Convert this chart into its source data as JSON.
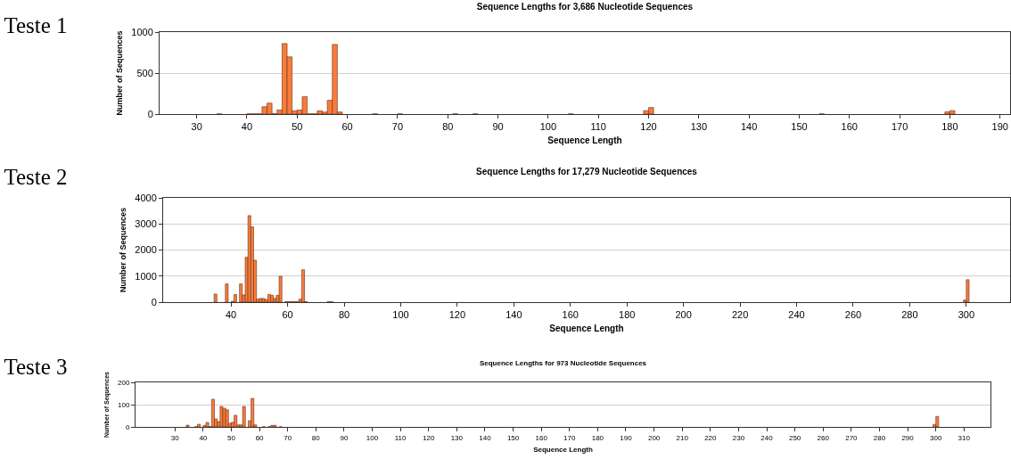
{
  "chart_data": [
    {
      "type": "bar",
      "title": "Sequence Lengths for 3,686 Nucleotide Sequences",
      "xlabel": "Sequence Length",
      "ylabel": "Number of Sequences",
      "annotations": [
        "Teste 1"
      ],
      "x": [
        34.5,
        40.5,
        41.5,
        42.5,
        43.5,
        44.5,
        45.5,
        46.5,
        47.5,
        48.5,
        49.5,
        50.5,
        51.5,
        52.5,
        53.5,
        54.5,
        55.5,
        56.5,
        57.5,
        58.5,
        65.5,
        70.5,
        81.5,
        85.5,
        104.5,
        119.5,
        120.5,
        154.5,
        179.5,
        180.5
      ],
      "values": [
        3,
        3,
        3,
        3,
        90,
        133,
        5,
        50,
        860,
        698,
        40,
        50,
        212,
        3,
        3,
        40,
        25,
        169,
        849,
        25,
        3,
        3,
        3,
        3,
        3,
        42,
        80,
        3,
        27,
        42
      ],
      "color": "#f87c3c",
      "xlim": [
        22.6,
        192
      ],
      "xticks": [
        30,
        40,
        50,
        60,
        70,
        80,
        90,
        100,
        110,
        120,
        130,
        140,
        150,
        160,
        170,
        180,
        190
      ],
      "ylim": [
        0,
        1000
      ],
      "yticks": [
        0,
        500,
        1000
      ],
      "grid": "y"
    },
    {
      "type": "bar",
      "title": "Sequence Lengths for 17,279 Nucleotide Sequences",
      "xlabel": "Sequence Length",
      "ylabel": "Number of Sequences",
      "annotations": [
        "Teste 2"
      ],
      "x": [
        34.5,
        38.5,
        40.5,
        41.5,
        43.5,
        44.5,
        45.5,
        46.5,
        47.5,
        48.5,
        49.5,
        50.5,
        51.5,
        52.5,
        53.5,
        54.5,
        55.5,
        56.5,
        57.5,
        59.5,
        60.5,
        61.5,
        62.5,
        63.5,
        64.5,
        65.5,
        66.5,
        74.5,
        75.5,
        299.5,
        300.5
      ],
      "values": [
        310,
        700,
        30,
        290,
        700,
        275,
        1720,
        3320,
        2885,
        1610,
        115,
        140,
        140,
        100,
        290,
        265,
        140,
        265,
        990,
        20,
        20,
        20,
        20,
        20,
        115,
        1240,
        20,
        20,
        20,
        80,
        860
      ],
      "color": "#f87c3c",
      "xlim": [
        16,
        315.5
      ],
      "xticks": [
        40,
        60,
        80,
        100,
        120,
        140,
        160,
        180,
        200,
        220,
        240,
        260,
        280,
        300
      ],
      "ylim": [
        0,
        4000
      ],
      "yticks": [
        0,
        1000,
        2000,
        3000,
        4000
      ],
      "grid": "y"
    },
    {
      "type": "bar",
      "title": "Sequence Lengths for 973 Nucleotide Sequences",
      "xlabel": "Sequence Length",
      "ylabel": "Number of Sequences",
      "annotations": [
        "Teste 3"
      ],
      "x": [
        34.5,
        37.5,
        38.5,
        40.5,
        41.5,
        42.5,
        43.5,
        44.5,
        45.5,
        46.5,
        47.5,
        48.5,
        49.5,
        50.5,
        51.5,
        52.5,
        53.5,
        54.5,
        56.5,
        57.5,
        58.5,
        61.5,
        63.5,
        64.5,
        65.5,
        67.5,
        299.5,
        300.5
      ],
      "values": [
        8,
        1,
        12,
        7,
        20,
        2,
        124,
        36,
        24,
        92,
        84,
        77,
        16,
        21,
        52,
        9,
        9,
        92,
        28,
        128,
        9,
        1,
        1,
        7,
        7,
        1,
        11,
        47
      ],
      "color": "#f87c3c",
      "xlim": [
        16,
        319.4
      ],
      "xticks": [
        30,
        40,
        50,
        60,
        70,
        80,
        90,
        100,
        110,
        120,
        130,
        140,
        150,
        160,
        170,
        180,
        190,
        200,
        210,
        220,
        230,
        240,
        250,
        260,
        270,
        280,
        290,
        300,
        310
      ],
      "ylim": [
        0,
        200
      ],
      "yticks": [
        0,
        100,
        200
      ],
      "grid": "y"
    }
  ]
}
